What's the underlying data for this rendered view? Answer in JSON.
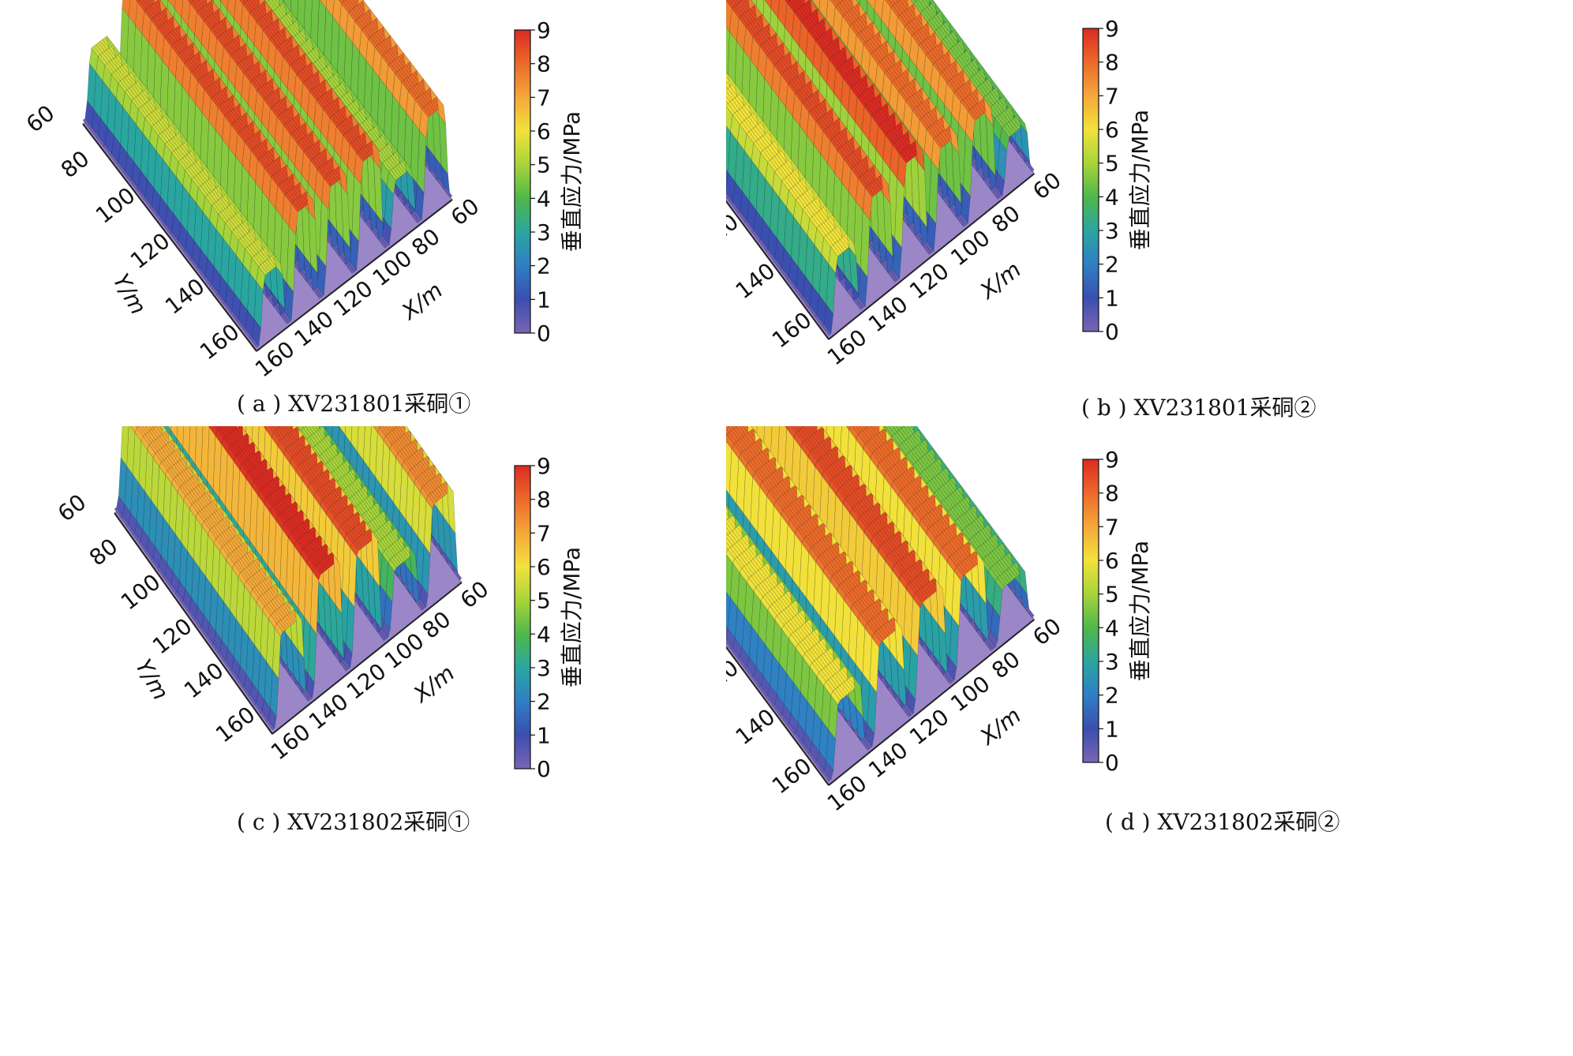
{
  "colorbar": {
    "label": "垂直应力/MPa",
    "ticks": [
      "0",
      "1",
      "2",
      "3",
      "4",
      "5",
      "6",
      "7",
      "8",
      "9"
    ],
    "min": 0,
    "max": 9,
    "colors": [
      "#7b64b4",
      "#3a4fb0",
      "#2f7fc4",
      "#2aa6a0",
      "#4fb84a",
      "#a8d43a",
      "#f2e23a",
      "#f4a83a",
      "#ec6a2a",
      "#dc2a22"
    ]
  },
  "axes": {
    "x_label": "X/m",
    "y_label": "Y/m",
    "x_ticks": [
      "60",
      "80",
      "100",
      "120",
      "140",
      "160"
    ],
    "y_ticks": [
      "60",
      "80",
      "100",
      "120",
      "140",
      "160"
    ]
  },
  "chart_data": [
    {
      "type": "surface",
      "caption": "( a ) XV231801采硐①",
      "x_range": [
        60,
        160
      ],
      "y_range": [
        60,
        160
      ],
      "z_range": [
        0,
        9
      ],
      "ridges": [
        {
          "peak_stress": 5.5
        },
        {
          "peak_stress": 8.5
        },
        {
          "peak_stress": 8.5
        },
        {
          "peak_stress": 8.5
        },
        {
          "peak_stress": 5.0
        },
        {
          "peak_stress": 8.0
        }
      ]
    },
    {
      "type": "surface",
      "caption": "( b ) XV231801采硐②",
      "x_range": [
        60,
        160
      ],
      "y_range": [
        60,
        160
      ],
      "z_range": [
        0,
        9
      ],
      "ridges": [
        {
          "peak_stress": 6.0
        },
        {
          "peak_stress": 8.5
        },
        {
          "peak_stress": 9.0
        },
        {
          "peak_stress": 8.0
        },
        {
          "peak_stress": 8.0
        },
        {
          "peak_stress": 4.5
        }
      ]
    },
    {
      "type": "surface",
      "caption": "( c ) XV231802采硐①",
      "x_range": [
        60,
        160
      ],
      "y_range": [
        60,
        160
      ],
      "z_range": [
        0,
        9
      ],
      "ridges": [
        {
          "peak_stress": 7.0
        },
        {
          "peak_stress": 9.0
        },
        {
          "peak_stress": 8.5
        },
        {
          "peak_stress": 5.0
        },
        {
          "peak_stress": 7.5
        }
      ]
    },
    {
      "type": "surface",
      "caption": "( d ) XV231802采硐②",
      "x_range": [
        60,
        160
      ],
      "y_range": [
        60,
        160
      ],
      "z_range": [
        0,
        9
      ],
      "ridges": [
        {
          "peak_stress": 6.0
        },
        {
          "peak_stress": 8.0
        },
        {
          "peak_stress": 8.5
        },
        {
          "peak_stress": 8.0
        },
        {
          "peak_stress": 4.5
        }
      ]
    }
  ]
}
